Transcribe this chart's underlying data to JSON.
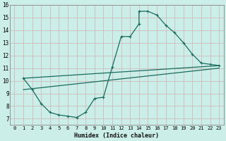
{
  "xlabel": "Humidex (Indice chaleur)",
  "bg_color": "#cceee8",
  "grid_color": "#ccbbbb",
  "line_color": "#1a6b5e",
  "xlim": [
    -0.5,
    23.5
  ],
  "ylim": [
    6.5,
    16.0
  ],
  "xticks": [
    0,
    1,
    2,
    3,
    4,
    5,
    6,
    7,
    8,
    9,
    10,
    11,
    12,
    13,
    14,
    15,
    16,
    17,
    18,
    19,
    20,
    21,
    22,
    23
  ],
  "yticks": [
    7,
    8,
    9,
    10,
    11,
    12,
    13,
    14,
    15,
    16
  ],
  "line1_x": [
    1,
    2,
    3,
    4,
    5,
    6,
    7,
    8,
    9,
    10,
    11,
    12,
    13,
    14,
    14,
    15,
    16,
    17,
    18,
    19,
    20,
    21,
    22,
    23
  ],
  "line1_y": [
    10.2,
    9.3,
    8.2,
    7.5,
    7.3,
    7.2,
    7.1,
    7.5,
    8.6,
    8.7,
    11.1,
    13.5,
    13.5,
    14.5,
    15.5,
    15.5,
    15.2,
    14.4,
    13.8,
    13.0,
    12.1,
    11.4,
    11.3,
    11.2
  ],
  "line2_x": [
    1,
    23
  ],
  "line2_y": [
    10.2,
    11.2
  ],
  "line3_x": [
    1,
    23
  ],
  "line3_y": [
    9.3,
    11.0
  ]
}
